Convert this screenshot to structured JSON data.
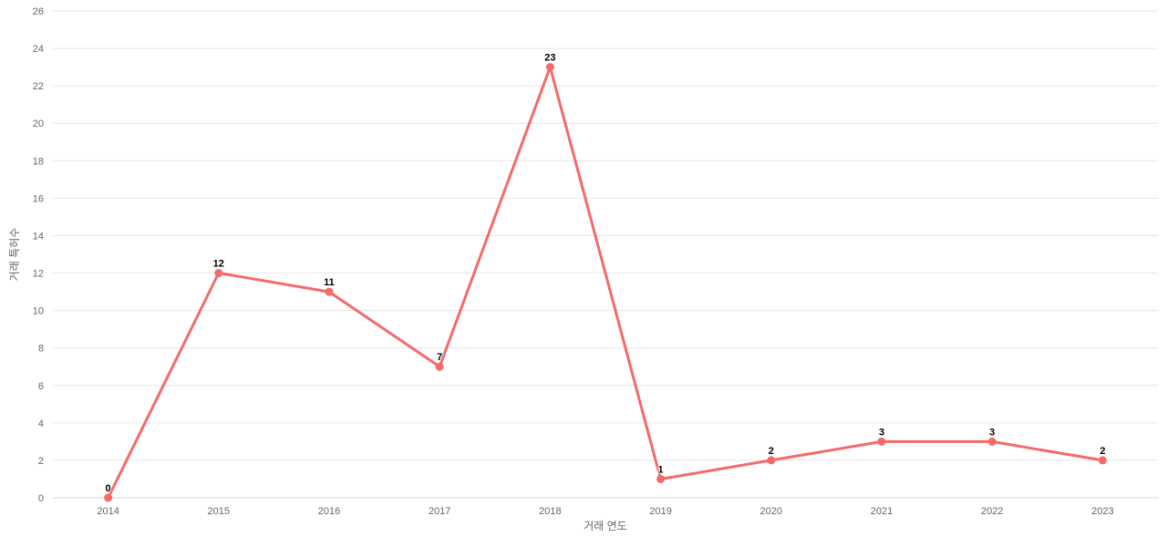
{
  "chart": {
    "background_color": "#ffffff",
    "grid_color": "#e6e6e6",
    "axis_line_color": "#ccd6eb",
    "tick_label_color": "#666666",
    "axis_title_color": "#666666",
    "data_label_color": "#000000",
    "series_color": "#f46a6a"
  },
  "chart_data": {
    "type": "line",
    "title": "",
    "categories": [
      "2014",
      "2015",
      "2016",
      "2017",
      "2018",
      "2019",
      "2020",
      "2021",
      "2022",
      "2023"
    ],
    "series": [
      {
        "name": "거래 특허수",
        "values": [
          0,
          12,
          11,
          7,
          23,
          1,
          2,
          3,
          3,
          2
        ],
        "color": "#f46a6a"
      }
    ],
    "xlabel": "거래 연도",
    "ylabel": "거래 특허수",
    "ylim": [
      0,
      26
    ],
    "ytick_step": 2,
    "yticks": [
      0,
      2,
      4,
      6,
      8,
      10,
      12,
      14,
      16,
      18,
      20,
      22,
      24,
      26
    ],
    "grid": "horizontal-only",
    "legend_position": "none",
    "data_labels_visible": true,
    "marker": "circle"
  }
}
